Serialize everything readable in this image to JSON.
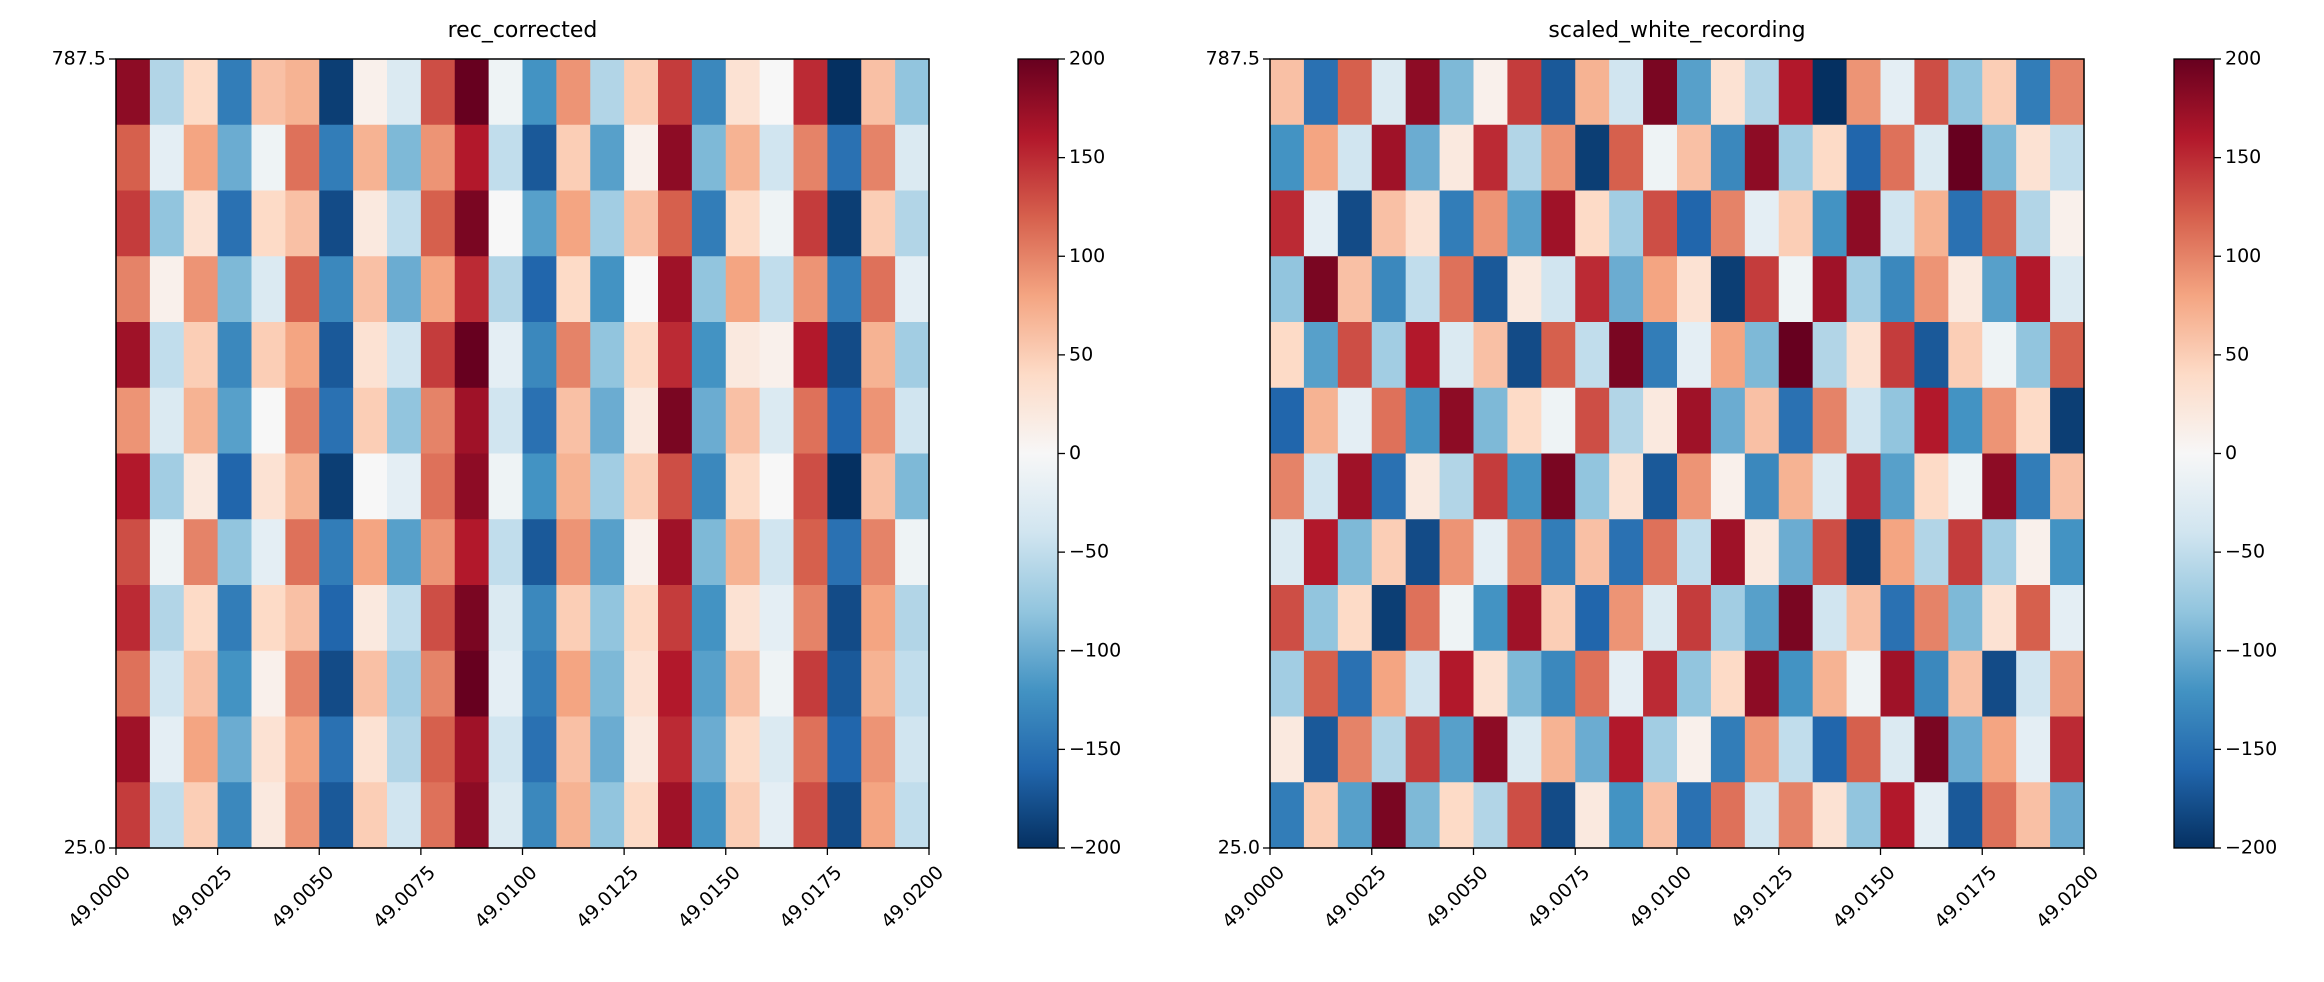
{
  "chart_data": [
    {
      "type": "heatmap",
      "title": "rec_corrected",
      "xlim": [
        49.0,
        49.02
      ],
      "ylim": [
        25.0,
        787.5
      ],
      "xticks": [
        {
          "value": 49.0,
          "label": "49.0000"
        },
        {
          "value": 49.0025,
          "label": "49.0025"
        },
        {
          "value": 49.005,
          "label": "49.0050"
        },
        {
          "value": 49.0075,
          "label": "49.0075"
        },
        {
          "value": 49.01,
          "label": "49.0100"
        },
        {
          "value": 49.0125,
          "label": "49.0125"
        },
        {
          "value": 49.015,
          "label": "49.0150"
        },
        {
          "value": 49.0175,
          "label": "49.0175"
        },
        {
          "value": 49.02,
          "label": "49.0200"
        }
      ],
      "yticks": [
        {
          "value": 25.0,
          "label": "25.0"
        },
        787.5
      ],
      "clim": [
        -200,
        200
      ],
      "cticks": [
        {
          "value": -200,
          "label": "−200"
        },
        {
          "value": -150,
          "label": "−150"
        },
        {
          "value": -100,
          "label": "−100"
        },
        {
          "value": -50,
          "label": "−50"
        },
        0,
        50,
        100,
        150,
        200
      ],
      "colormap": [
        "#053061",
        "#2166ac",
        "#4393c3",
        "#92c5de",
        "#d1e5f0",
        "#f7f7f7",
        "#fddbc7",
        "#f4a582",
        "#d6604d",
        "#b2182b",
        "#67001f"
      ],
      "values": [
        [
          180,
          -60,
          40,
          -140,
          60,
          70,
          -190,
          10,
          -30,
          130,
          200,
          -10,
          -120,
          90,
          -60,
          50,
          140,
          -130,
          30,
          0,
          150,
          -200,
          60,
          -80
        ],
        [
          120,
          -20,
          80,
          -100,
          -10,
          110,
          -140,
          70,
          -90,
          90,
          160,
          -50,
          -170,
          50,
          -110,
          10,
          180,
          -90,
          70,
          -40,
          100,
          -150,
          100,
          -30
        ],
        [
          140,
          -80,
          30,
          -150,
          40,
          60,
          -180,
          20,
          -50,
          120,
          190,
          0,
          -110,
          80,
          -70,
          60,
          120,
          -140,
          40,
          -10,
          140,
          -190,
          50,
          -60
        ],
        [
          100,
          10,
          90,
          -90,
          -30,
          120,
          -130,
          60,
          -100,
          80,
          150,
          -60,
          -160,
          40,
          -120,
          0,
          170,
          -80,
          80,
          -50,
          90,
          -140,
          110,
          -20
        ],
        [
          170,
          -50,
          50,
          -130,
          50,
          80,
          -170,
          30,
          -40,
          140,
          200,
          -20,
          -130,
          100,
          -80,
          40,
          150,
          -120,
          20,
          10,
          160,
          -180,
          70,
          -70
        ],
        [
          90,
          -30,
          70,
          -110,
          0,
          100,
          -150,
          50,
          -80,
          100,
          170,
          -40,
          -150,
          60,
          -100,
          20,
          190,
          -100,
          60,
          -30,
          110,
          -160,
          90,
          -40
        ],
        [
          160,
          -70,
          20,
          -160,
          30,
          70,
          -190,
          0,
          -20,
          110,
          180,
          -10,
          -120,
          70,
          -70,
          50,
          130,
          -130,
          40,
          0,
          130,
          -200,
          60,
          -90
        ],
        [
          130,
          -10,
          100,
          -80,
          -20,
          110,
          -140,
          80,
          -110,
          90,
          160,
          -50,
          -170,
          90,
          -110,
          10,
          170,
          -90,
          70,
          -40,
          120,
          -150,
          100,
          -10
        ],
        [
          150,
          -60,
          40,
          -140,
          40,
          60,
          -160,
          20,
          -50,
          130,
          190,
          -30,
          -130,
          50,
          -80,
          40,
          140,
          -120,
          30,
          -20,
          100,
          -180,
          80,
          -60
        ],
        [
          110,
          -40,
          60,
          -120,
          10,
          100,
          -180,
          60,
          -70,
          100,
          200,
          -20,
          -140,
          80,
          -90,
          30,
          160,
          -110,
          60,
          -10,
          140,
          -170,
          70,
          -50
        ],
        [
          170,
          -20,
          80,
          -100,
          30,
          80,
          -150,
          30,
          -60,
          120,
          170,
          -40,
          -150,
          60,
          -100,
          20,
          150,
          -100,
          40,
          -30,
          110,
          -160,
          90,
          -40
        ],
        [
          140,
          -50,
          50,
          -130,
          20,
          90,
          -170,
          50,
          -40,
          110,
          180,
          -30,
          -130,
          70,
          -80,
          40,
          170,
          -120,
          50,
          -20,
          130,
          -180,
          80,
          -50
        ]
      ]
    },
    {
      "type": "heatmap",
      "title": "scaled_white_recording",
      "xlim": [
        49.0,
        49.02
      ],
      "ylim": [
        25.0,
        787.5
      ],
      "xticks": [
        {
          "value": 49.0,
          "label": "49.0000"
        },
        {
          "value": 49.0025,
          "label": "49.0025"
        },
        {
          "value": 49.005,
          "label": "49.0050"
        },
        {
          "value": 49.0075,
          "label": "49.0075"
        },
        {
          "value": 49.01,
          "label": "49.0100"
        },
        {
          "value": 49.0125,
          "label": "49.0125"
        },
        {
          "value": 49.015,
          "label": "49.0150"
        },
        {
          "value": 49.0175,
          "label": "49.0175"
        },
        {
          "value": 49.02,
          "label": "49.0200"
        }
      ],
      "yticks": [
        {
          "value": 25.0,
          "label": "25.0"
        },
        787.5
      ],
      "clim": [
        -200,
        200
      ],
      "cticks": [
        {
          "value": -200,
          "label": "−200"
        },
        {
          "value": -150,
          "label": "−150"
        },
        {
          "value": -100,
          "label": "−100"
        },
        {
          "value": -50,
          "label": "−50"
        },
        0,
        50,
        100,
        150,
        200
      ],
      "colormap": [
        "#053061",
        "#2166ac",
        "#4393c3",
        "#92c5de",
        "#d1e5f0",
        "#f7f7f7",
        "#fddbc7",
        "#f4a582",
        "#d6604d",
        "#b2182b",
        "#67001f"
      ],
      "values": [
        [
          60,
          -150,
          120,
          -30,
          180,
          -90,
          10,
          140,
          -170,
          70,
          -40,
          190,
          -110,
          30,
          -60,
          160,
          -200,
          90,
          -20,
          130,
          -80,
          50,
          -140,
          100
        ],
        [
          -120,
          80,
          -40,
          170,
          -100,
          20,
          150,
          -60,
          90,
          -190,
          120,
          -10,
          60,
          -130,
          180,
          -70,
          40,
          -160,
          110,
          -30,
          200,
          -90,
          30,
          -50
        ],
        [
          150,
          -20,
          -180,
          60,
          30,
          -140,
          90,
          -110,
          170,
          40,
          -70,
          130,
          -160,
          100,
          -20,
          50,
          -120,
          180,
          -40,
          70,
          -150,
          120,
          -60,
          10
        ],
        [
          -80,
          190,
          60,
          -130,
          -50,
          110,
          -170,
          20,
          -40,
          150,
          -100,
          80,
          30,
          -190,
          140,
          -10,
          170,
          -70,
          -130,
          90,
          20,
          -110,
          160,
          -30
        ],
        [
          40,
          -110,
          130,
          -70,
          160,
          -30,
          60,
          -180,
          120,
          -50,
          190,
          -140,
          -20,
          80,
          -90,
          200,
          -60,
          30,
          140,
          -170,
          50,
          -10,
          -80,
          120
        ],
        [
          -160,
          70,
          -20,
          110,
          -120,
          180,
          -90,
          40,
          -10,
          130,
          -60,
          20,
          170,
          -100,
          60,
          -150,
          100,
          -40,
          -80,
          160,
          -120,
          90,
          40,
          -190
        ],
        [
          100,
          -40,
          170,
          -150,
          20,
          -60,
          140,
          -120,
          190,
          -80,
          30,
          -170,
          90,
          10,
          -130,
          70,
          -30,
          150,
          -110,
          40,
          -10,
          180,
          -140,
          60
        ],
        [
          -30,
          160,
          -90,
          50,
          -180,
          90,
          -20,
          100,
          -140,
          60,
          -150,
          110,
          -50,
          170,
          20,
          -100,
          130,
          -190,
          80,
          -60,
          140,
          -70,
          10,
          -120
        ],
        [
          130,
          -80,
          40,
          -190,
          110,
          -10,
          -120,
          170,
          50,
          -160,
          90,
          -30,
          140,
          -70,
          -110,
          190,
          -40,
          60,
          -150,
          100,
          -90,
          30,
          120,
          -20
        ],
        [
          -70,
          120,
          -150,
          80,
          -40,
          160,
          30,
          -90,
          -130,
          110,
          -20,
          150,
          -80,
          40,
          180,
          -120,
          70,
          -10,
          170,
          -130,
          60,
          -180,
          -40,
          90
        ],
        [
          20,
          -170,
          100,
          -60,
          140,
          -110,
          180,
          -30,
          70,
          -100,
          160,
          -70,
          10,
          -140,
          90,
          -50,
          -160,
          120,
          -30,
          190,
          -100,
          80,
          -20,
          150
        ],
        [
          -140,
          50,
          -110,
          190,
          -90,
          40,
          -60,
          130,
          -180,
          20,
          -120,
          60,
          -150,
          110,
          -40,
          100,
          30,
          -80,
          160,
          -20,
          -170,
          110,
          60,
          -100
        ]
      ]
    }
  ]
}
